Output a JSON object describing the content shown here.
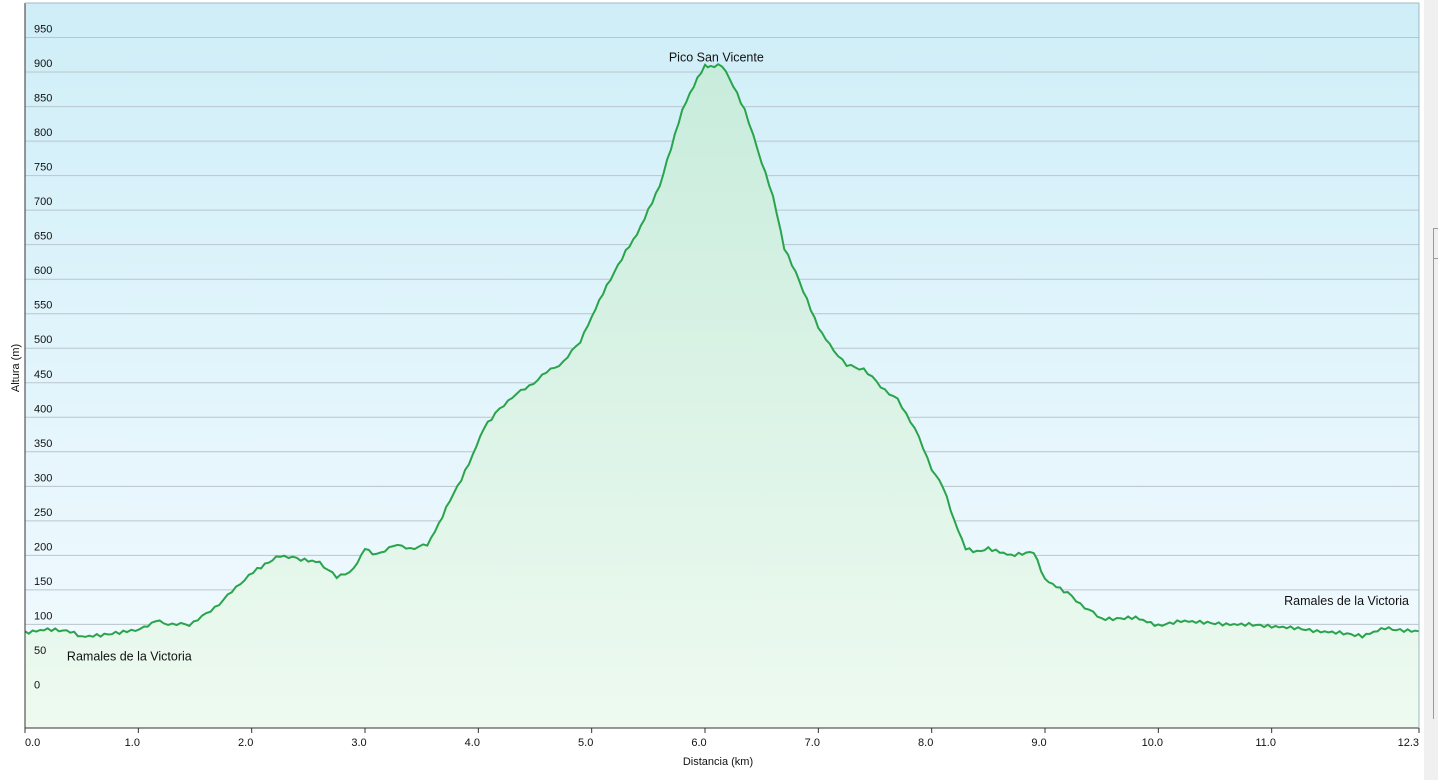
{
  "chart_data": {
    "type": "area",
    "title": "",
    "xlabel": "Distancia  (km)",
    "ylabel": "Altura (m)",
    "xlim": [
      0,
      12.3
    ],
    "ylim": [
      -50,
      1000
    ],
    "grid": true,
    "x_ticks": [
      "0.0",
      "1.0",
      "2.0",
      "3.0",
      "4.0",
      "5.0",
      "6.0",
      "7.0",
      "8.0",
      "9.0",
      "10.0",
      "11.0",
      "12.3"
    ],
    "y_ticks": [
      "0",
      "50",
      "100",
      "150",
      "200",
      "250",
      "300",
      "350",
      "400",
      "450",
      "500",
      "550",
      "600",
      "650",
      "700",
      "750",
      "800",
      "850",
      "900",
      "950"
    ],
    "annotations": [
      {
        "text": "Pico San Vicente",
        "x": 6.1,
        "y": 915
      },
      {
        "text": "Ramales de la Victoria",
        "x": 0.37,
        "y": 48
      },
      {
        "text": "Ramales de la Victoria",
        "x": 11.11,
        "y": 128
      }
    ],
    "colors": {
      "line": "#2aa44c",
      "fill_top": "#c8ecdc",
      "fill_bottom": "#eefaf0",
      "bg_top": "#cfeef8",
      "bg_bottom": "#f2fbff",
      "grid": "#b9c6cc"
    },
    "series": [
      {
        "x": [
          0,
          0.2,
          0.4,
          0.5,
          0.7,
          0.9,
          1.05,
          1.15,
          1.3,
          1.45,
          1.6,
          1.75,
          1.9,
          2.05,
          2.15,
          2.25,
          2.4,
          2.6,
          2.75,
          2.9,
          3.0,
          3.1,
          3.25,
          3.4,
          3.55,
          3.65,
          3.75,
          3.85,
          3.95,
          4.05,
          4.15,
          4.3,
          4.45,
          4.6,
          4.75,
          4.9,
          5.0,
          5.1,
          5.2,
          5.3,
          5.4,
          5.5,
          5.6,
          5.7,
          5.8,
          5.9,
          6.0,
          6.05,
          6.15,
          6.25,
          6.35,
          6.5,
          6.6,
          6.7,
          6.8,
          6.9,
          7.0,
          7.1,
          7.25,
          7.4,
          7.55,
          7.7,
          7.85,
          8.0,
          8.1,
          8.2,
          8.3,
          8.4,
          8.5,
          8.7,
          8.9,
          9.0,
          9.1,
          9.2,
          9.35,
          9.5,
          9.6,
          9.8,
          10.0,
          10.2,
          10.4,
          10.6,
          10.8,
          11.0,
          11.2,
          11.4,
          11.6,
          11.8,
          12.0,
          12.1,
          12.3
        ],
        "values": [
          88,
          93,
          90,
          82,
          85,
          90,
          95,
          105,
          100,
          100,
          115,
          135,
          160,
          180,
          190,
          200,
          195,
          190,
          168,
          180,
          210,
          200,
          215,
          210,
          215,
          245,
          280,
          310,
          345,
          385,
          405,
          430,
          445,
          465,
          480,
          510,
          545,
          580,
          610,
          640,
          665,
          700,
          735,
          790,
          845,
          880,
          910,
          908,
          910,
          880,
          845,
          770,
          720,
          645,
          610,
          570,
          530,
          505,
          475,
          470,
          445,
          425,
          385,
          325,
          300,
          250,
          210,
          205,
          210,
          200,
          205,
          165,
          155,
          145,
          125,
          108,
          108,
          110,
          98,
          105,
          103,
          100,
          100,
          97,
          95,
          90,
          88,
          83,
          95,
          92,
          90
        ]
      }
    ]
  }
}
